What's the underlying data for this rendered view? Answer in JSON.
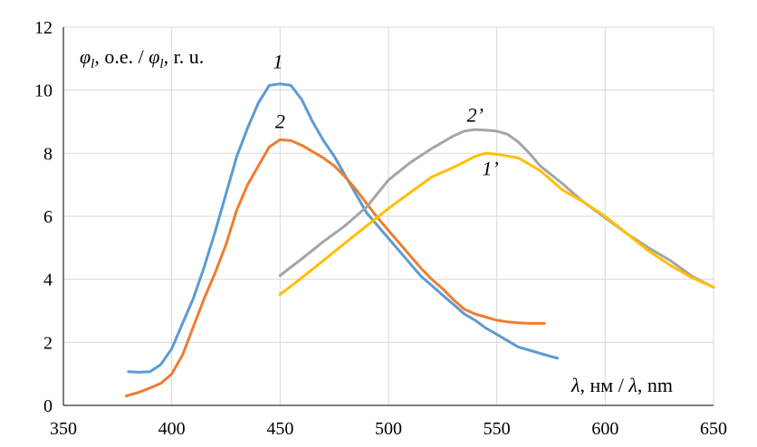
{
  "chart_data": {
    "type": "line",
    "title": "",
    "ylabel": {
      "phi": "φ",
      "sub1": "l",
      "mid": ", o.e. / ",
      "phi2": "φ",
      "sub2": "l",
      "end": ", r. u."
    },
    "xlabel": {
      "lam1": "λ",
      "mid": ", нм / ",
      "lam2": "λ",
      "end": ", nm"
    },
    "xlim": [
      350,
      650
    ],
    "ylim": [
      0,
      12
    ],
    "xticks": [
      "350",
      "400",
      "450",
      "500",
      "550",
      "600",
      "650"
    ],
    "yticks": [
      "0",
      "2",
      "4",
      "6",
      "8",
      "10",
      "12"
    ],
    "grid": true,
    "series": [
      {
        "name": "1",
        "color": "#5b9bd5",
        "label_at": [
          449,
          10.7
        ],
        "points": [
          [
            380,
            1.07
          ],
          [
            385,
            1.05
          ],
          [
            390,
            1.07
          ],
          [
            395,
            1.3
          ],
          [
            400,
            1.8
          ],
          [
            405,
            2.6
          ],
          [
            410,
            3.4
          ],
          [
            415,
            4.4
          ],
          [
            420,
            5.5
          ],
          [
            425,
            6.7
          ],
          [
            430,
            7.9
          ],
          [
            435,
            8.8
          ],
          [
            440,
            9.6
          ],
          [
            445,
            10.15
          ],
          [
            450,
            10.2
          ],
          [
            455,
            10.15
          ],
          [
            460,
            9.7
          ],
          [
            465,
            9.0
          ],
          [
            470,
            8.4
          ],
          [
            475,
            7.9
          ],
          [
            480,
            7.3
          ],
          [
            485,
            6.7
          ],
          [
            490,
            6.1
          ],
          [
            495,
            5.7
          ],
          [
            500,
            5.3
          ],
          [
            505,
            4.9
          ],
          [
            510,
            4.5
          ],
          [
            515,
            4.1
          ],
          [
            520,
            3.8
          ],
          [
            525,
            3.5
          ],
          [
            530,
            3.2
          ],
          [
            535,
            2.9
          ],
          [
            540,
            2.7
          ],
          [
            545,
            2.45
          ],
          [
            550,
            2.25
          ],
          [
            555,
            2.05
          ],
          [
            560,
            1.85
          ],
          [
            565,
            1.75
          ],
          [
            570,
            1.65
          ],
          [
            575,
            1.55
          ],
          [
            578,
            1.5
          ]
        ]
      },
      {
        "name": "2",
        "color": "#ed7d31",
        "label_at": [
          450,
          8.8
        ],
        "points": [
          [
            379,
            0.3
          ],
          [
            385,
            0.42
          ],
          [
            390,
            0.55
          ],
          [
            395,
            0.7
          ],
          [
            400,
            1.0
          ],
          [
            405,
            1.6
          ],
          [
            410,
            2.5
          ],
          [
            415,
            3.4
          ],
          [
            420,
            4.2
          ],
          [
            425,
            5.1
          ],
          [
            430,
            6.2
          ],
          [
            435,
            7.0
          ],
          [
            440,
            7.6
          ],
          [
            445,
            8.2
          ],
          [
            450,
            8.43
          ],
          [
            455,
            8.4
          ],
          [
            460,
            8.25
          ],
          [
            465,
            8.05
          ],
          [
            470,
            7.85
          ],
          [
            475,
            7.6
          ],
          [
            480,
            7.25
          ],
          [
            485,
            6.85
          ],
          [
            490,
            6.4
          ],
          [
            495,
            5.95
          ],
          [
            500,
            5.55
          ],
          [
            505,
            5.15
          ],
          [
            510,
            4.75
          ],
          [
            515,
            4.35
          ],
          [
            520,
            4.0
          ],
          [
            525,
            3.7
          ],
          [
            530,
            3.35
          ],
          [
            535,
            3.05
          ],
          [
            540,
            2.9
          ],
          [
            545,
            2.8
          ],
          [
            550,
            2.7
          ],
          [
            555,
            2.65
          ],
          [
            560,
            2.62
          ],
          [
            565,
            2.6
          ],
          [
            572,
            2.6
          ]
        ]
      },
      {
        "name": "2’",
        "color": "#a5a5a5",
        "label_at": [
          540,
          9.0
        ],
        "points": [
          [
            450,
            4.12
          ],
          [
            460,
            4.65
          ],
          [
            470,
            5.2
          ],
          [
            480,
            5.7
          ],
          [
            490,
            6.3
          ],
          [
            500,
            7.15
          ],
          [
            510,
            7.7
          ],
          [
            520,
            8.15
          ],
          [
            530,
            8.55
          ],
          [
            535,
            8.7
          ],
          [
            540,
            8.75
          ],
          [
            545,
            8.73
          ],
          [
            550,
            8.7
          ],
          [
            555,
            8.6
          ],
          [
            560,
            8.35
          ],
          [
            565,
            8.0
          ],
          [
            570,
            7.6
          ],
          [
            580,
            7.05
          ],
          [
            590,
            6.45
          ],
          [
            600,
            5.95
          ],
          [
            610,
            5.45
          ],
          [
            620,
            5.0
          ],
          [
            630,
            4.6
          ],
          [
            640,
            4.1
          ],
          [
            650,
            3.75
          ]
        ]
      },
      {
        "name": "1’",
        "color": "#ffc000",
        "label_at": [
          547,
          7.3
        ],
        "points": [
          [
            450,
            3.52
          ],
          [
            460,
            4.05
          ],
          [
            470,
            4.6
          ],
          [
            480,
            5.15
          ],
          [
            490,
            5.7
          ],
          [
            500,
            6.25
          ],
          [
            510,
            6.75
          ],
          [
            520,
            7.25
          ],
          [
            530,
            7.55
          ],
          [
            540,
            7.9
          ],
          [
            545,
            8.0
          ],
          [
            550,
            7.97
          ],
          [
            560,
            7.85
          ],
          [
            570,
            7.45
          ],
          [
            580,
            6.85
          ],
          [
            590,
            6.45
          ],
          [
            600,
            6.0
          ],
          [
            610,
            5.45
          ],
          [
            620,
            4.9
          ],
          [
            630,
            4.45
          ],
          [
            640,
            4.05
          ],
          [
            650,
            3.75
          ]
        ]
      }
    ]
  }
}
